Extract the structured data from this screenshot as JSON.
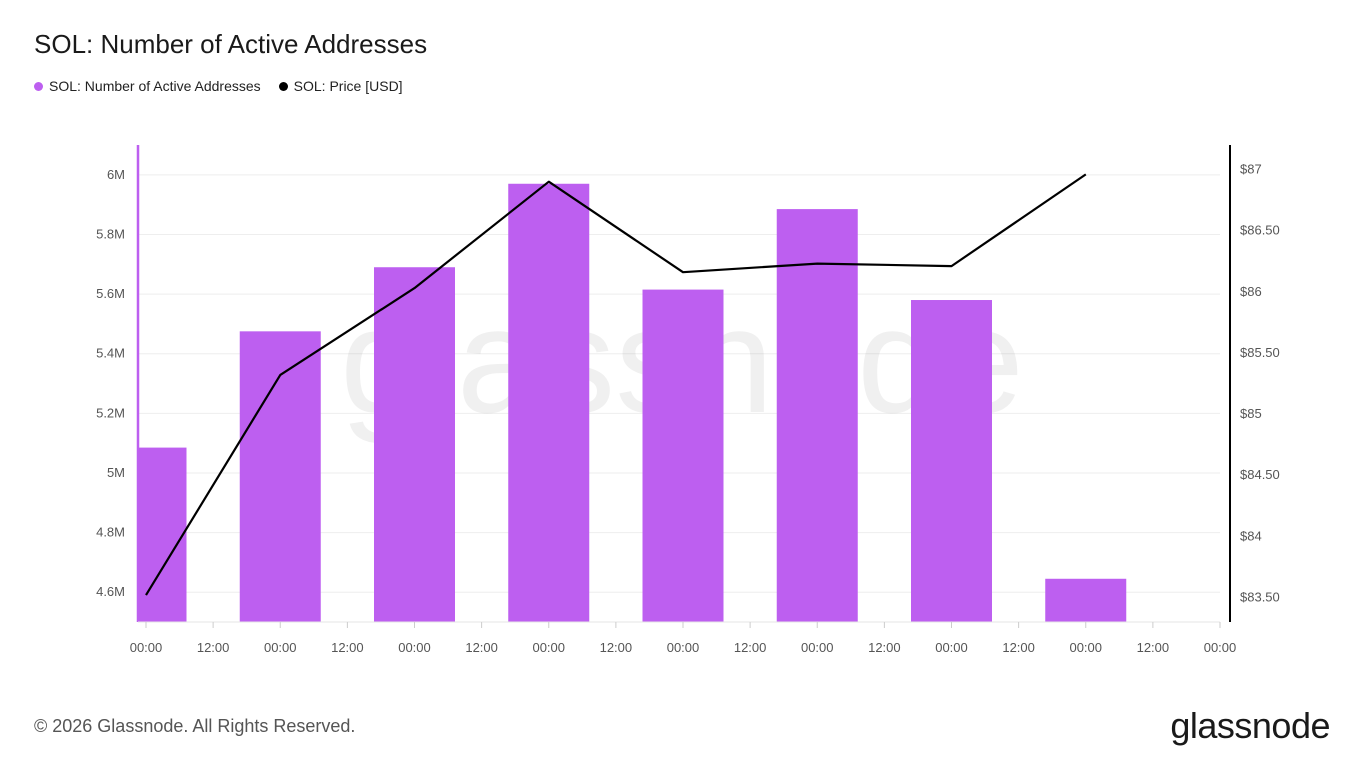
{
  "header": {
    "title": "SOL: Number of Active Addresses"
  },
  "legend": [
    {
      "label": "SOL: Number of Active Addresses",
      "color": "#bd5ff0"
    },
    {
      "label": "SOL: Price [USD]",
      "color": "#000000"
    }
  ],
  "watermark": "glassnode",
  "footer": {
    "copyright": "© 2026 Glassnode. All Rights Reserved.",
    "logo": "glassnode"
  },
  "chart_data": {
    "type": "bar",
    "title": "SOL: Number of Active Addresses",
    "x_tick_labels": [
      "00:00",
      "12:00",
      "00:00",
      "12:00",
      "00:00",
      "12:00",
      "00:00",
      "12:00",
      "00:00",
      "12:00",
      "00:00",
      "12:00",
      "00:00",
      "12:00",
      "00:00",
      "12:00",
      "00:00"
    ],
    "left_axis": {
      "ticks": [
        "4.6M",
        "4.8M",
        "5M",
        "5.2M",
        "5.4M",
        "5.6M",
        "5.8M",
        "6M"
      ],
      "tick_values": [
        4600000,
        4800000,
        5000000,
        5200000,
        5400000,
        5600000,
        5800000,
        6000000
      ],
      "ylim": [
        4500000,
        6100000
      ],
      "color": "#bd5ff0"
    },
    "right_axis": {
      "ticks": [
        "$83.50",
        "$84",
        "$84.50",
        "$85",
        "$85.50",
        "$86",
        "$86.50",
        "$87"
      ],
      "tick_values": [
        83.5,
        84,
        84.5,
        85,
        85.5,
        86,
        86.5,
        87
      ],
      "ylim": [
        83.3,
        87.2
      ],
      "color": "#000000"
    },
    "grid": true,
    "series": [
      {
        "name": "SOL: Number of Active Addresses",
        "type": "bar",
        "axis": "left",
        "color": "#bd5ff0",
        "values": [
          5085000,
          5475000,
          5690000,
          5970000,
          5615000,
          5885000,
          5580000,
          4645000
        ]
      },
      {
        "name": "SOL: Price [USD]",
        "type": "line",
        "axis": "right",
        "color": "#000000",
        "values": [
          83.52,
          85.32,
          86.03,
          86.9,
          86.16,
          86.23,
          86.21,
          86.96
        ]
      }
    ]
  }
}
